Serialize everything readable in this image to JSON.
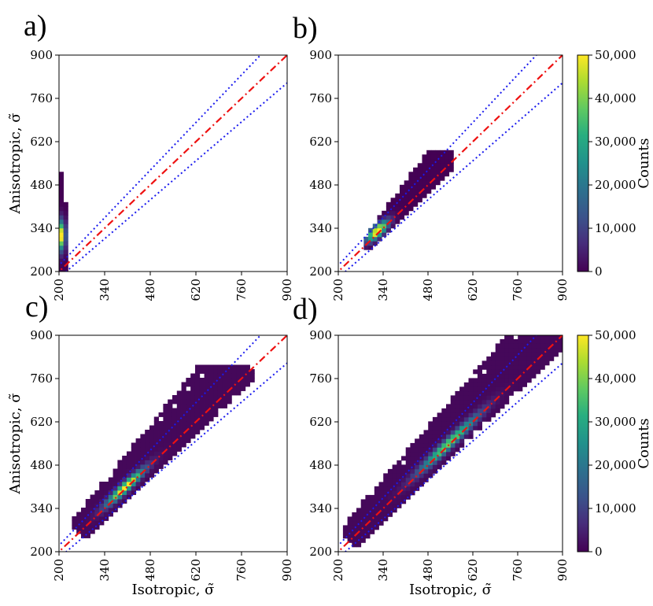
{
  "figure": {
    "colorbar": {
      "label": "Counts",
      "ticks": [
        "0",
        "10,000",
        "20,000",
        "30,000",
        "40,000",
        "50,000"
      ],
      "tick_values": [
        0,
        10000,
        20000,
        30000,
        40000,
        50000
      ],
      "colormap": "viridis"
    },
    "colors": {
      "identity_line": "#ee1111",
      "band_lines": "#1a1aee",
      "axis": "#000000"
    }
  },
  "chart_data": [
    {
      "panel": "a)",
      "type": "heatmap",
      "xlabel": "",
      "ylabel": "Anisotropic, σ̃",
      "xlim": [
        200,
        900
      ],
      "ylim": [
        200,
        900
      ],
      "xticks": [
        200,
        340,
        480,
        620,
        760,
        900
      ],
      "yticks": [
        200,
        340,
        480,
        620,
        760,
        900
      ],
      "colorbar_range": [
        0,
        50000
      ],
      "lines": [
        {
          "name": "identity",
          "style": "dash-dot",
          "color": "red",
          "slope": 1.0
        },
        {
          "name": "upper band",
          "style": "dotted",
          "color": "blue",
          "slope": 1.1
        },
        {
          "name": "lower band",
          "style": "dotted",
          "color": "blue",
          "slope": 0.9
        }
      ],
      "distribution": {
        "kind": "vertical-strip",
        "x_range": [
          200,
          225
        ],
        "y_range": [
          200,
          510
        ],
        "peak_y": [
          260,
          360
        ]
      }
    },
    {
      "panel": "b)",
      "type": "heatmap",
      "xlabel": "",
      "ylabel": "",
      "xlim": [
        200,
        900
      ],
      "ylim": [
        200,
        900
      ],
      "xticks": [
        200,
        340,
        480,
        620,
        760,
        900
      ],
      "yticks": [
        200,
        340,
        480,
        620,
        760,
        900
      ],
      "colorbar_range": [
        0,
        50000
      ],
      "lines": [
        {
          "name": "identity",
          "style": "dash-dot",
          "color": "red",
          "slope": 1.0
        },
        {
          "name": "upper band",
          "style": "dotted",
          "color": "blue",
          "slope": 1.1
        },
        {
          "name": "lower band",
          "style": "dotted",
          "color": "blue",
          "slope": 0.9
        }
      ],
      "distribution": {
        "kind": "cluster",
        "peak": [
          320,
          330
        ],
        "x_range": [
          280,
          550
        ],
        "y_range": [
          270,
          580
        ]
      }
    },
    {
      "panel": "c)",
      "type": "heatmap",
      "xlabel": "Isotropic, σ̃",
      "ylabel": "Anisotropic, σ̃",
      "xlim": [
        200,
        900
      ],
      "ylim": [
        200,
        900
      ],
      "xticks": [
        200,
        340,
        480,
        620,
        760,
        900
      ],
      "yticks": [
        200,
        340,
        480,
        620,
        760,
        900
      ],
      "colorbar_range": [
        0,
        50000
      ],
      "lines": [
        {
          "name": "identity",
          "style": "dash-dot",
          "color": "red",
          "slope": 1.0
        },
        {
          "name": "upper band",
          "style": "dotted",
          "color": "blue",
          "slope": 1.1
        },
        {
          "name": "lower band",
          "style": "dotted",
          "color": "blue",
          "slope": 0.9
        }
      ],
      "distribution": {
        "kind": "diagonal-band",
        "peak": [
          400,
          420
        ],
        "x_range": [
          240,
          790
        ],
        "y_range": [
          230,
          800
        ]
      }
    },
    {
      "panel": "d)",
      "type": "heatmap",
      "xlabel": "Isotropic, σ̃",
      "ylabel": "",
      "xlim": [
        200,
        900
      ],
      "ylim": [
        200,
        900
      ],
      "xticks": [
        200,
        340,
        480,
        620,
        760,
        900
      ],
      "yticks": [
        200,
        340,
        480,
        620,
        760,
        900
      ],
      "colorbar_range": [
        0,
        50000
      ],
      "lines": [
        {
          "name": "identity",
          "style": "dash-dot",
          "color": "red",
          "slope": 1.0
        },
        {
          "name": "upper band",
          "style": "dotted",
          "color": "blue",
          "slope": 1.1
        },
        {
          "name": "lower band",
          "style": "dotted",
          "color": "blue",
          "slope": 0.9
        }
      ],
      "distribution": {
        "kind": "diagonal-band",
        "peak": [
          540,
          560
        ],
        "x_range": [
          215,
          900
        ],
        "y_range": [
          215,
          900
        ]
      }
    }
  ]
}
